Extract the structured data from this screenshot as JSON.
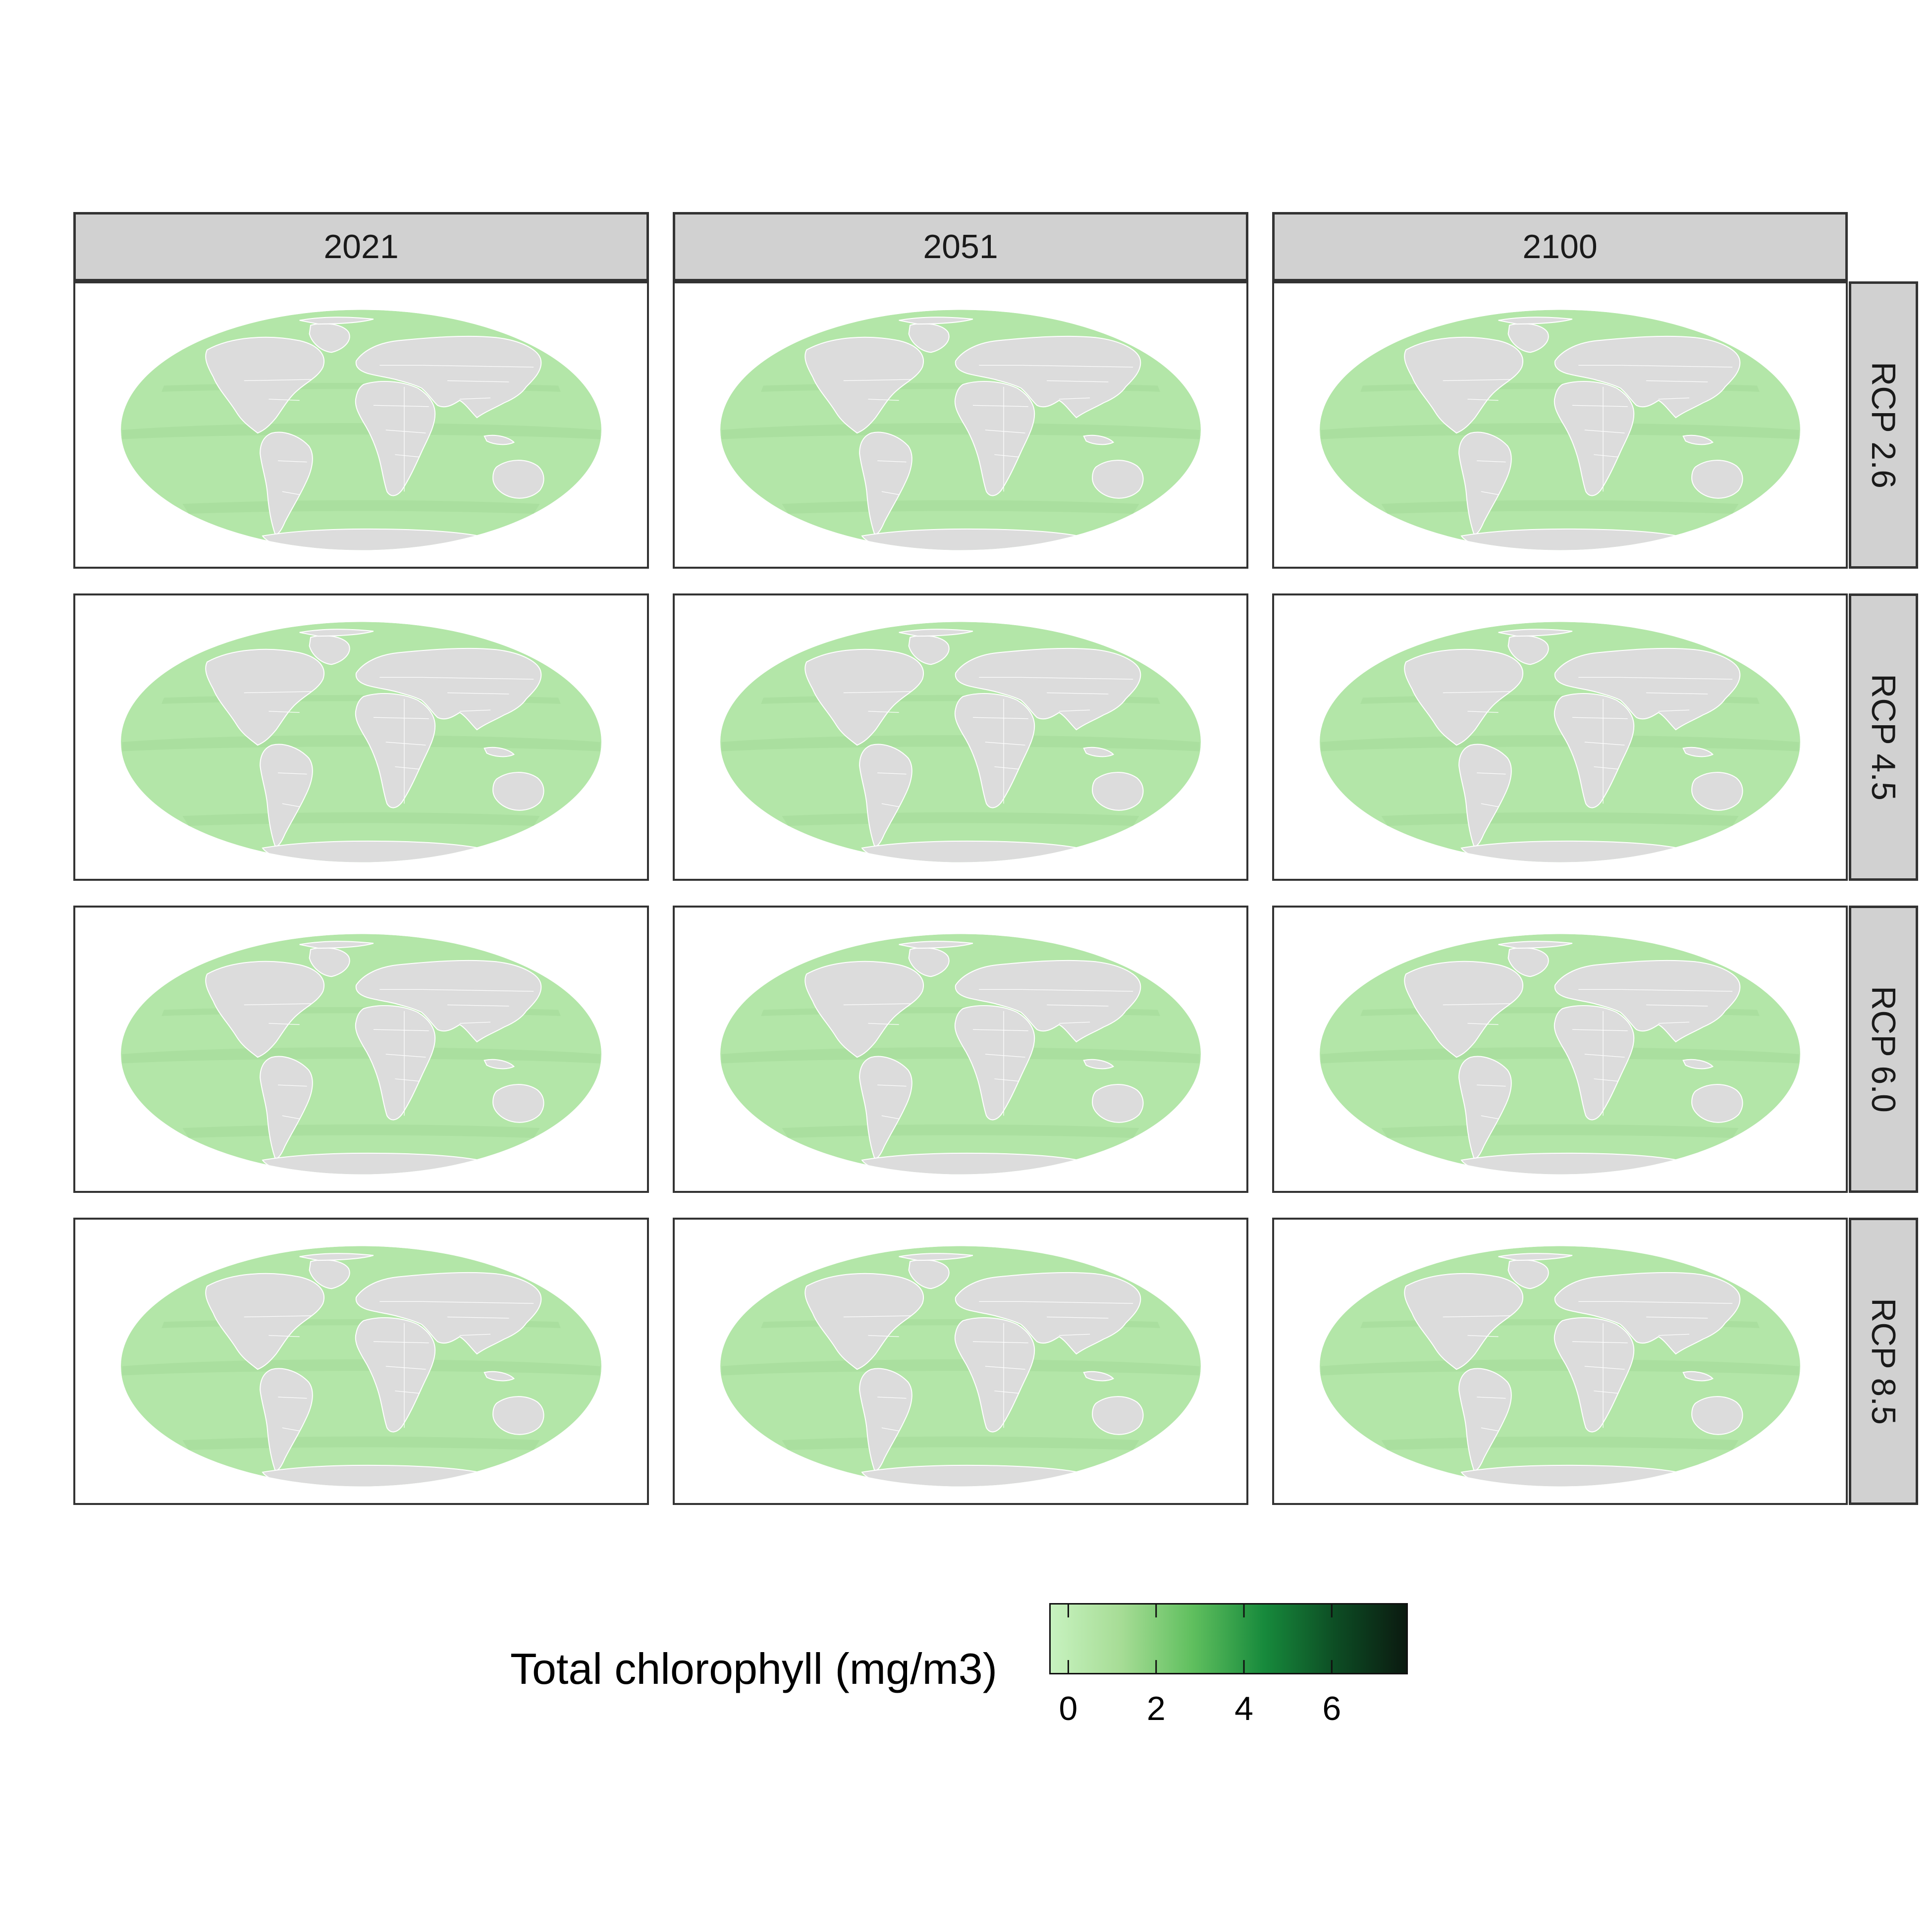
{
  "facets": {
    "columns": [
      "2021",
      "2051",
      "2100"
    ],
    "rows": [
      "RCP 2.6",
      "RCP 4.5",
      "RCP 6.0",
      "RCP 8.5"
    ]
  },
  "legend": {
    "title": "Total chlorophyll (mg/m3)",
    "ticks": [
      "0",
      "2",
      "4",
      "6"
    ],
    "range": [
      -0.4,
      7.7
    ],
    "colors": [
      "#c7f2bf",
      "#a6dc95",
      "#5fbf5e",
      "#178a3c",
      "#0d4d24",
      "#0b1a10"
    ]
  },
  "map_colors": {
    "ocean": "#b3e6a8",
    "ocean_band": "#a7dd9c",
    "land": "#dcdcdc",
    "borders": "#ffffff"
  },
  "chart_data": {
    "type": "heatmap",
    "title": "",
    "variable": "Total chlorophyll (mg/m3)",
    "projection": "Mollweide",
    "facet_columns": [
      "2021",
      "2051",
      "2100"
    ],
    "facet_rows": [
      "RCP 2.6",
      "RCP 4.5",
      "RCP 6.0",
      "RCP 8.5"
    ],
    "color_scale": {
      "min": -0.4,
      "max": 7.7,
      "ticks": [
        0,
        2,
        4,
        6
      ]
    },
    "typical_ocean_value": 0.8
  }
}
